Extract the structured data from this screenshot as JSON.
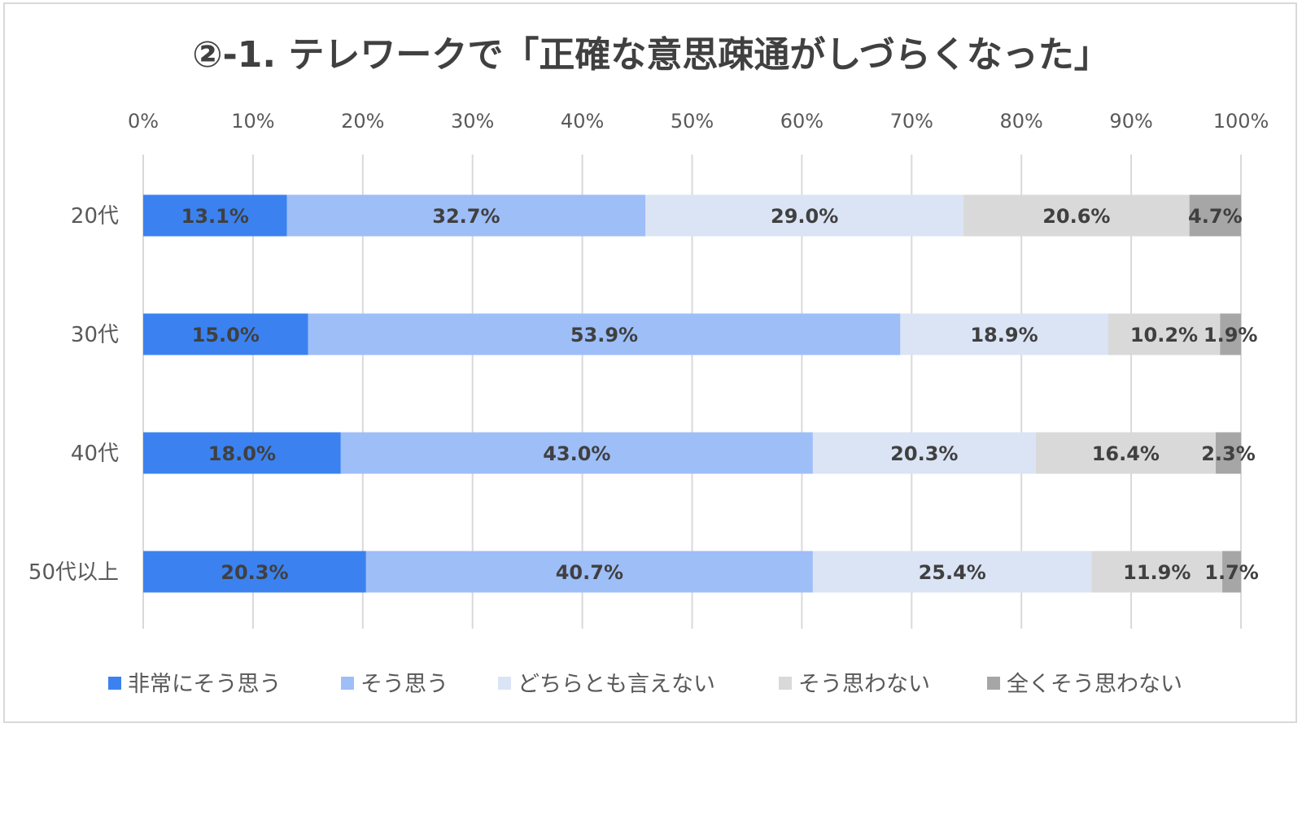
{
  "chart_data": {
    "type": "bar",
    "orientation": "horizontal-stacked-100",
    "title": "②-1. テレワークで「正確な意思疎通がしづらくなった」",
    "categories": [
      "20代",
      "30代",
      "40代",
      "50代以上"
    ],
    "x_ticks": [
      "0%",
      "10%",
      "20%",
      "30%",
      "40%",
      "50%",
      "60%",
      "70%",
      "80%",
      "90%",
      "100%"
    ],
    "xlim": [
      0,
      100
    ],
    "grid": true,
    "legend_position": "bottom",
    "series": [
      {
        "name": "非常にそう思う",
        "color": "#3b82f0",
        "values": [
          13.1,
          15.0,
          18.0,
          20.3
        ],
        "labels": [
          "13.1%",
          "15.0%",
          "18.0%",
          "20.3%"
        ]
      },
      {
        "name": "そう思う",
        "color": "#9ebef8",
        "values": [
          32.7,
          53.9,
          43.0,
          40.7
        ],
        "labels": [
          "32.7%",
          "53.9%",
          "43.0%",
          "40.7%"
        ]
      },
      {
        "name": "どちらとも言えない",
        "color": "#dbe4f5",
        "values": [
          29.0,
          18.9,
          20.3,
          25.4
        ],
        "labels": [
          "29.0%",
          "18.9%",
          "20.3%",
          "25.4%"
        ]
      },
      {
        "name": "そう思わない",
        "color": "#d9d9d9",
        "values": [
          20.6,
          10.2,
          16.4,
          11.9
        ],
        "labels": [
          "20.6%",
          "10.2%",
          "16.4%",
          "11.9%"
        ]
      },
      {
        "name": "全くそう思わない",
        "color": "#a6a6a6",
        "values": [
          4.7,
          1.9,
          2.3,
          1.7
        ],
        "labels": [
          "4.7%",
          "1.9%",
          "2.3%",
          "1.7%"
        ]
      }
    ]
  }
}
